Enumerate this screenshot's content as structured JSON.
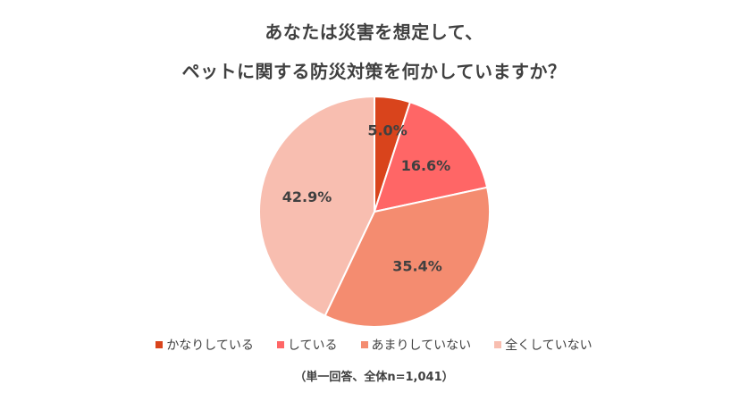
{
  "title": {
    "line1": "あなたは災害を想定して、",
    "line2": "ペットに関する防災対策を何かしていますか？"
  },
  "chart_data": {
    "type": "pie",
    "start_angle_deg": 0,
    "direction": "clockwise",
    "slices": [
      {
        "label": "かなりしている",
        "value": 5.0,
        "display": "5.0%",
        "color": "#D9441C"
      },
      {
        "label": "している",
        "value": 16.6,
        "display": "16.6%",
        "color": "#FF6666"
      },
      {
        "label": "あまりしていない",
        "value": 35.4,
        "display": "35.4%",
        "color": "#F48C70"
      },
      {
        "label": "全くしていない",
        "value": 42.9,
        "display": "42.9%",
        "color": "#F8BEB0"
      }
    ],
    "legend_position": "bottom"
  },
  "note": "（単一回答、全体n=1,041）"
}
